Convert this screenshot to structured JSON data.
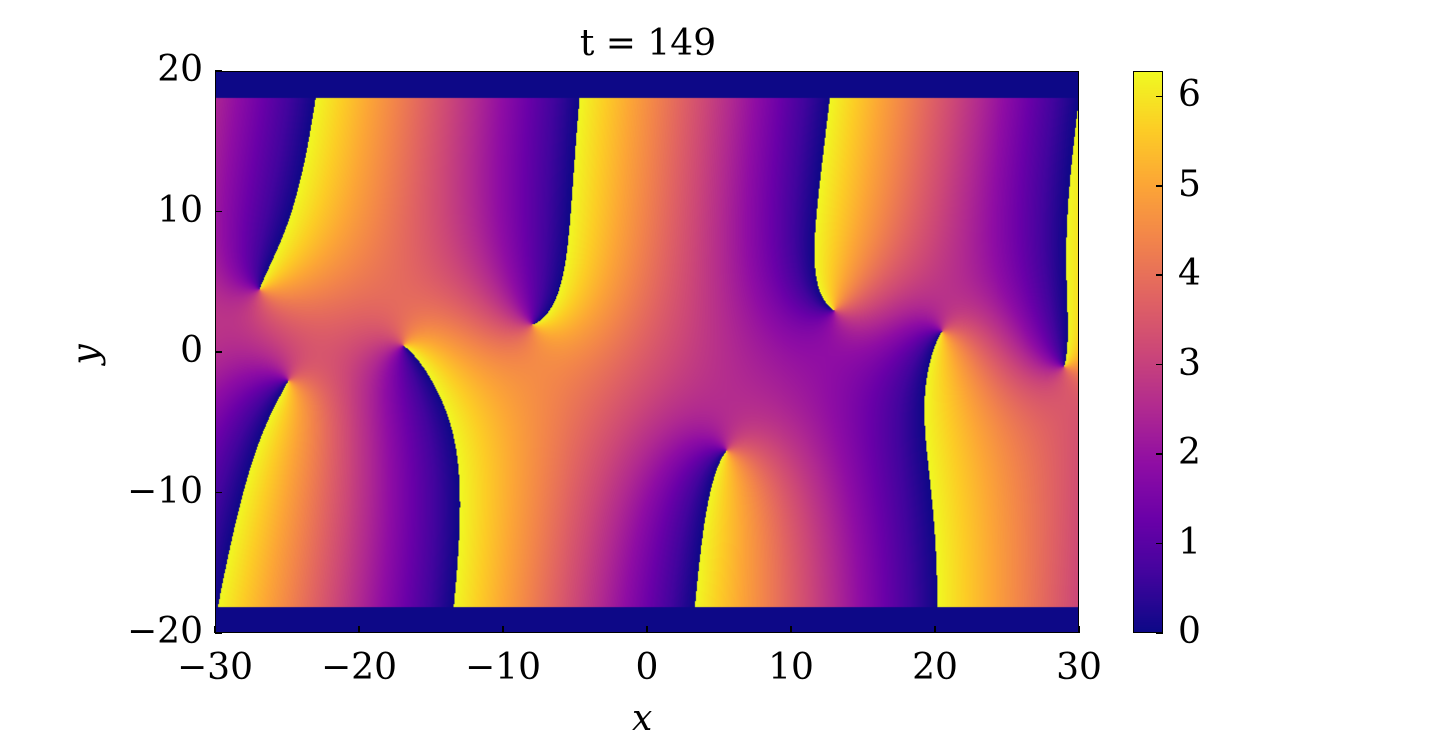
{
  "chart_data": {
    "type": "heatmap",
    "title": "t = 149",
    "xlabel": "x",
    "ylabel": "y",
    "xlim": [
      -30,
      30
    ],
    "ylim": [
      -20,
      20
    ],
    "x_ticks": [
      -30,
      -20,
      -10,
      0,
      10,
      20,
      30
    ],
    "x_tick_labels": [
      "−30",
      "−20",
      "−10",
      "0",
      "10",
      "20",
      "30"
    ],
    "y_ticks": [
      20,
      10,
      0,
      -10,
      -20
    ],
    "y_tick_labels": [
      "20",
      "10",
      "0",
      "−10",
      "−20"
    ],
    "colorbar": {
      "range": [
        0,
        6.283
      ],
      "ticks": [
        6,
        5,
        4,
        3,
        2,
        1,
        0
      ],
      "tick_labels": [
        "6",
        "5",
        "4",
        "3",
        "2",
        "1",
        "0"
      ],
      "colormap": "plasma"
    },
    "background_band_y": [
      18.2,
      20
    ],
    "background_band_y_bottom": [
      -20,
      -18.2
    ],
    "band_value": 0,
    "phase_defects": [
      {
        "x": -27,
        "y": 4.5
      },
      {
        "x": -17,
        "y": 0.5
      },
      {
        "x": -8,
        "y": 2
      },
      {
        "x": 5.5,
        "y": -7
      },
      {
        "x": 13,
        "y": 3
      },
      {
        "x": 20.5,
        "y": 1.5
      },
      {
        "x": -25,
        "y": -2
      },
      {
        "x": 29,
        "y": -1
      }
    ]
  },
  "colors": {
    "background": "#ffffff",
    "band": "#0d0887"
  }
}
